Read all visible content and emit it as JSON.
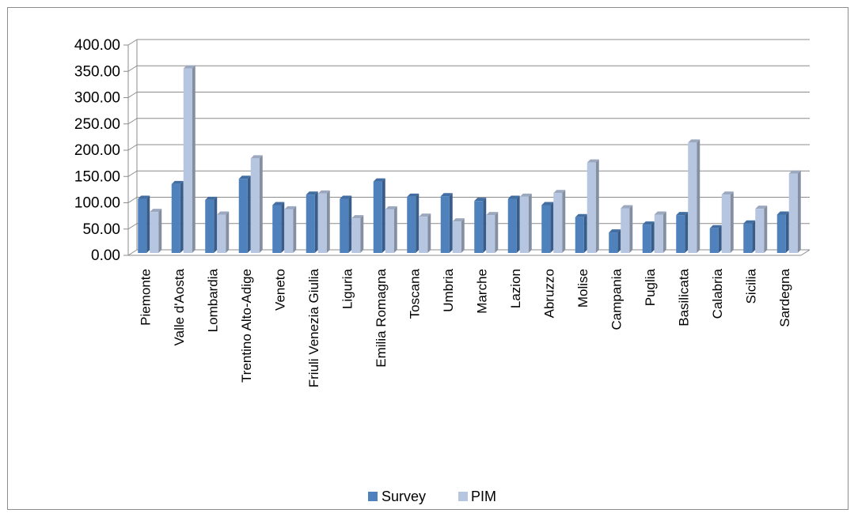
{
  "chart_data": {
    "type": "bar",
    "categories": [
      "Piemonte",
      "Valle d'Aosta",
      "Lombardia",
      "Trentino Alto-Adige",
      "Veneto",
      "Friuli Venezia Giulia",
      "Liguria",
      "Emilia Romagna",
      "Toscana",
      "Umbria",
      "Marche",
      "Lazion",
      "Abruzzo",
      "Molise",
      "Campania",
      "Puglia",
      "Basilicata",
      "Calabria",
      "Sicilia",
      "Sardegna"
    ],
    "series": [
      {
        "name": "Survey",
        "color": "#4f81bd",
        "values": [
          112,
          140,
          110,
          150,
          100,
          120,
          112,
          145,
          116,
          117,
          108,
          112,
          100,
          77,
          48,
          63,
          81,
          56,
          65,
          82
        ]
      },
      {
        "name": "PIM",
        "color": "#b7c6e0",
        "values": [
          87,
          360,
          82,
          189,
          92,
          122,
          75,
          92,
          78,
          69,
          81,
          116,
          123,
          181,
          94,
          82,
          219,
          120,
          93,
          160
        ]
      }
    ],
    "y_ticks": [
      "0.00",
      "50.00",
      "100.00",
      "150.00",
      "200.00",
      "250.00",
      "300.00",
      "350.00",
      "400.00"
    ],
    "ylim": [
      0,
      400
    ],
    "grid": true,
    "legend_position": "bottom-center",
    "title": "",
    "xlabel": "",
    "ylabel": ""
  }
}
